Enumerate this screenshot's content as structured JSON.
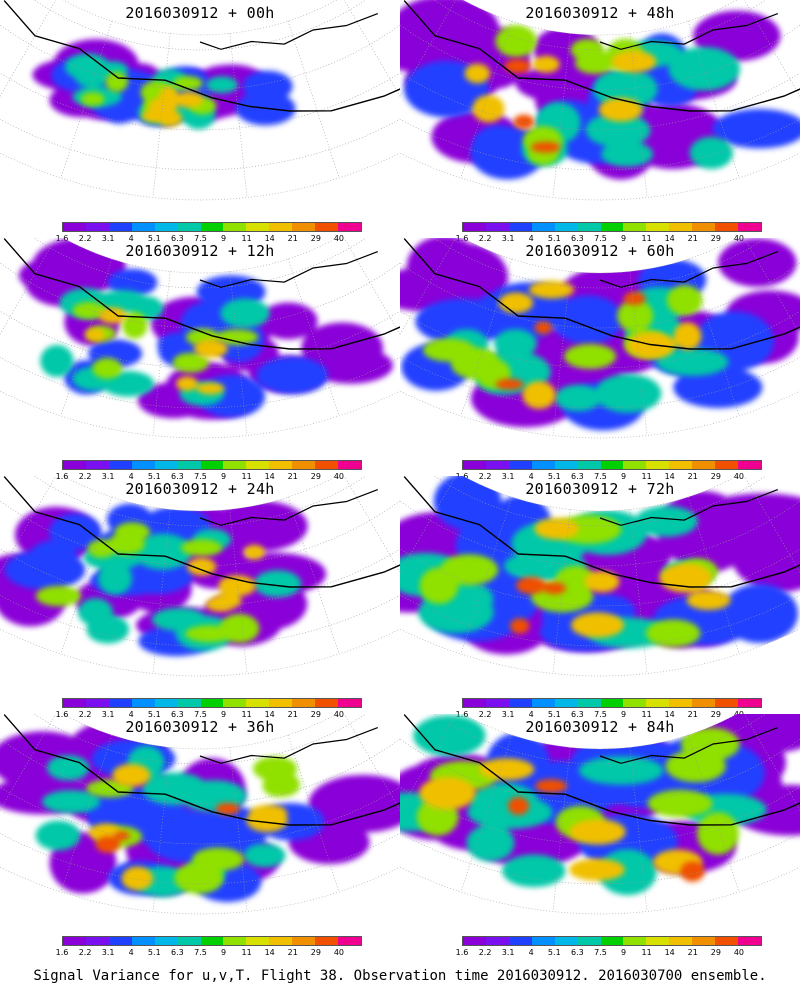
{
  "panels": [
    {
      "title": "2016030912 + 00h",
      "lead": 0
    },
    {
      "title": "2016030912 + 48h",
      "lead": 48
    },
    {
      "title": "2016030912 + 12h",
      "lead": 12
    },
    {
      "title": "2016030912 + 60h",
      "lead": 60
    },
    {
      "title": "2016030912 + 24h",
      "lead": 24
    },
    {
      "title": "2016030912 + 72h",
      "lead": 72
    },
    {
      "title": "2016030912 + 36h",
      "lead": 36
    },
    {
      "title": "2016030912 + 84h",
      "lead": 84
    }
  ],
  "colorbar": {
    "levels": [
      "1.6",
      "2.2",
      "3.1",
      "4",
      "5.1",
      "6.3",
      "7.5",
      "9",
      "11",
      "14",
      "21",
      "29",
      "40"
    ],
    "colors": [
      "#8a00d8",
      "#7a10f0",
      "#2040ff",
      "#0090ff",
      "#00b8e8",
      "#00c8a8",
      "#00d000",
      "#90e000",
      "#d8e000",
      "#f0c000",
      "#f09000",
      "#f05000",
      "#f00090"
    ]
  },
  "caption": "Signal Variance for u,v,T. Flight 38. Observation time 2016030912. 2016030700 ensemble."
}
